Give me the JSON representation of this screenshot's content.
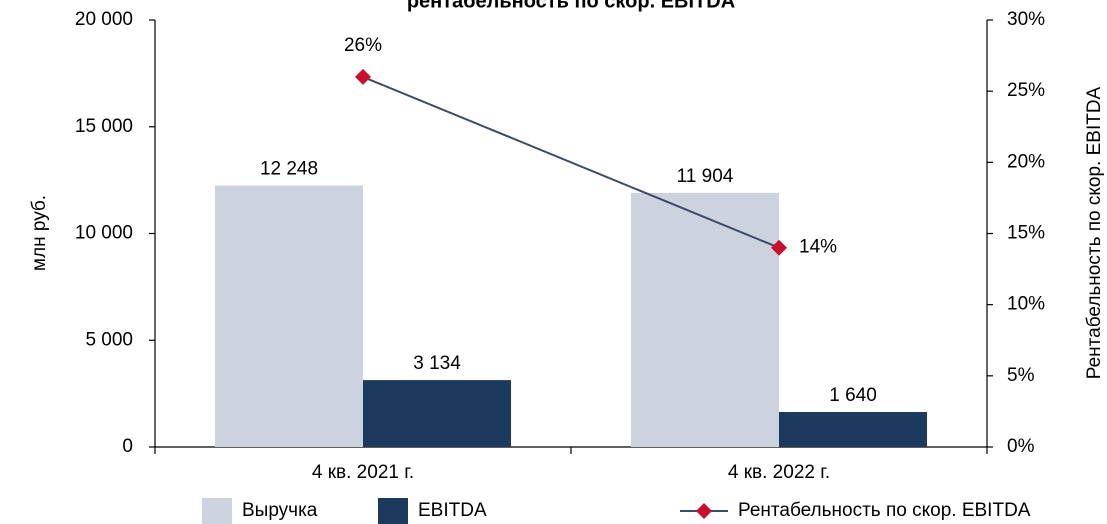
{
  "chart_data": {
    "type": "bar",
    "title": "рентабельность по скор. EBITDA",
    "categories": [
      "4 кв. 2021 г.",
      "4 кв. 2022 г."
    ],
    "series": [
      {
        "name": "Выручка",
        "color": "#cdd3de",
        "values": [
          12248,
          11904
        ],
        "value_labels": [
          "12 248",
          "11 904"
        ]
      },
      {
        "name": "EBITDA",
        "color": "#1c3a5e",
        "values": [
          3134,
          1640
        ],
        "value_labels": [
          "3 134",
          "1 640"
        ]
      },
      {
        "name": "Рентабельность по скор. EBITDA",
        "type": "line",
        "axis": "y2",
        "color": "#3d4b66",
        "marker_color": "#c8102e",
        "values": [
          26,
          14
        ],
        "value_labels": [
          "26%",
          "14%"
        ]
      }
    ],
    "ylabel": "млн руб.",
    "y2label": "Рентабельность по скор. EBITDA",
    "ylim": [
      0,
      20000
    ],
    "yticks": [
      0,
      {
        "value": 5000,
        "label": "5 000"
      },
      {
        "value": 10000,
        "label": "10 000"
      },
      {
        "value": 15000,
        "label": "15 000"
      },
      {
        "value": 20000,
        "label": "20 000"
      }
    ],
    "y2lim": [
      0,
      30
    ],
    "y2ticks": [
      {
        "value": 0,
        "label": "0%"
      },
      {
        "value": 5,
        "label": "5%"
      },
      {
        "value": 10,
        "label": "10%"
      },
      {
        "value": 15,
        "label": "15%"
      },
      {
        "value": 20,
        "label": "20%"
      },
      {
        "value": 25,
        "label": "25%"
      },
      {
        "value": 30,
        "label": "30%"
      }
    ],
    "legend": "bottom"
  }
}
